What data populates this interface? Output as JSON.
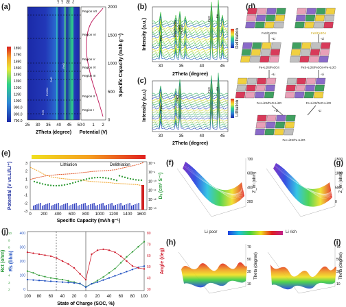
{
  "panels": {
    "a": {
      "label": "(a)",
      "colorbar_ticks": [
        "1890",
        "1790",
        "1690",
        "1590",
        "1490",
        "1390",
        "1290",
        "1190",
        "1090",
        "990.0",
        "890.0",
        "790.0"
      ],
      "xlabel": "2Theta (degree)",
      "xticks": [
        "25",
        "30",
        "35",
        "40",
        "45",
        "50"
      ],
      "peak_labels": [
        "FeS",
        "Fe3O4",
        "FeO",
        "Li2O",
        "Li2S",
        "Fe",
        "FeO",
        "FeS",
        "Li2O",
        "FeO"
      ],
      "regions": [
        "Region VII",
        "Region VI",
        "Region V",
        "Region IV",
        "Region III",
        "Region II",
        "Region I"
      ],
      "potential_label": "Potential (V)",
      "potential_ticks": [
        "0",
        "1",
        "2"
      ],
      "capacity_label": "Specific Capacity (mAh g⁻¹)",
      "capacity_ticks": [
        "0",
        "500",
        "1000",
        "1500",
        "2000"
      ]
    },
    "b": {
      "label": "(b)",
      "ylabel": "Intensity (a.u.)",
      "xlabel": "2Theta (degree)",
      "xticks": [
        "30",
        "35",
        "40",
        "45"
      ],
      "peaks": [
        "FeS",
        "Li2O/Fe3O4",
        "Li2O",
        "Fe3O4",
        "FeO",
        "Fe"
      ],
      "colorbar_label": "Delithiation"
    },
    "c": {
      "label": "(c)",
      "ylabel": "Intensity (a.u.)",
      "xlabel": "2Theta (degree)",
      "xticks": [
        "30",
        "35",
        "40",
        "45"
      ],
      "peaks": [
        "FeS",
        "FeO",
        "FeO",
        "Fe"
      ],
      "colorbar_label": "Lithiation"
    },
    "d": {
      "label": "(d)",
      "states": [
        "FeS/Fe3O4",
        "FeS/Fe3O4",
        "Fe+Li2S/Fe3O4",
        "FeS+Li2S/Fe3O4+Fe+Li2O",
        "Fe+Li2S/FeO+Li2O",
        "Fe+Li2S/FeO+Li2O",
        "Fe+Li2S/Fe+Li2O"
      ],
      "step_labels": [
        "+Li",
        "-Li",
        "+Li",
        "-Li",
        "+Li",
        "-Li"
      ]
    },
    "e": {
      "label": "(e)",
      "lithiation": "Lithiation",
      "delithiation": "Delithiation",
      "ylabel_left": "Potential (V vs.Li/Li⁺)",
      "ylabel_right": "Dₗᵢ (cm² S⁻¹)",
      "xlabel": "Specific Capacity (mAh g⁻¹)",
      "xticks": [
        "0",
        "200",
        "400",
        "600",
        "800",
        "1000",
        "1200",
        "1400",
        "1600"
      ],
      "yticks_left": [
        "3",
        "2",
        "1",
        "0",
        "-1",
        "-2",
        "-3"
      ],
      "yticks_right": [
        "10⁻⁸",
        "10⁻⁹",
        "10⁻¹⁰",
        "10⁻¹¹",
        "10⁻¹²",
        "10⁻¹³"
      ]
    },
    "f": {
      "label": "(f)",
      "zlabel": "Z_im (ohm)",
      "zticks": [
        "730",
        "600",
        "400",
        "200"
      ],
      "legend_poor": "Li poor",
      "legend_rich": "Li rich"
    },
    "g": {
      "label": "(g)",
      "zlabel": "Z_im (ohm)",
      "zticks": [
        "1500",
        "1000",
        "500",
        "0"
      ]
    },
    "h": {
      "label": "(h)",
      "zlabel": "Theta (degree)",
      "zticks": [
        "70",
        "50",
        "30",
        "10"
      ]
    },
    "i": {
      "label": "(i)",
      "zlabel": "Theta (degree)",
      "zticks": [
        "70",
        "50",
        "30",
        "10"
      ]
    },
    "j": {
      "label": "(j)",
      "ylabel_rct": "Rct (ohm)",
      "ylabel_rs": "Rs (ohm)",
      "ylabel_angle": "Angle (deg)",
      "xlabel": "State of Charge (SOC, %)",
      "xticks": [
        "100",
        "80",
        "60",
        "40",
        "20",
        "0",
        "20",
        "40",
        "60",
        "80",
        "100"
      ],
      "yticks_rct": [
        "10",
        "9",
        "8",
        "7",
        "6",
        "5",
        "4",
        "3",
        "2"
      ],
      "yticks_rs": [
        "400",
        "300",
        "200",
        "100",
        "0"
      ],
      "yticks_angle": [
        "80",
        "70",
        "60",
        "50",
        "40",
        "30"
      ]
    }
  },
  "chart_data": [
    {
      "type": "line",
      "title": "",
      "xlabel": "Specific Capacity (mAh g⁻¹)",
      "ylabel": "Potential (V vs.Li/Li⁺)",
      "xlim": [
        0,
        1650
      ],
      "ylim": [
        -3,
        3
      ],
      "series": [
        {
          "name": "Lithiation",
          "x": [
            0,
            100,
            200,
            300,
            400,
            500,
            600,
            700,
            800,
            900,
            1000,
            1100,
            1200,
            1300,
            1400,
            1500,
            1600
          ],
          "y": [
            2.3,
            1.9,
            1.4,
            1.1,
            0.95,
            0.85,
            0.8,
            0.75,
            0.6,
            0.5,
            0.45,
            0.4,
            0.3,
            0.25,
            0.2,
            0.15,
            0.0
          ]
        },
        {
          "name": "Delithiation",
          "x": [
            1600,
            1500,
            1400,
            1300,
            1200,
            1100,
            1000,
            900,
            800,
            700,
            600,
            500,
            400,
            300,
            200,
            100,
            0
          ],
          "y": [
            2.9,
            2.6,
            2.4,
            2.2,
            2.0,
            1.9,
            1.85,
            1.8,
            1.7,
            1.6,
            1.5,
            1.45,
            1.4,
            1.3,
            1.2,
            1.0,
            0.8
          ]
        }
      ]
    },
    {
      "type": "line",
      "title": "",
      "xlabel": "State of Charge (SOC, %)",
      "ylabel": "Rs (ohm)",
      "x": [
        100,
        90,
        80,
        70,
        60,
        50,
        40,
        30,
        20,
        10,
        0,
        10,
        20,
        30,
        40,
        50,
        60,
        70,
        80,
        90,
        100
      ],
      "series": [
        {
          "name": "Rct",
          "values": [
            230,
            210,
            180,
            165,
            150,
            140,
            130,
            115,
            100,
            80,
            45,
            80,
            120,
            160,
            210,
            260,
            330,
            400,
            460,
            520,
            580
          ]
        },
        {
          "name": "Rs",
          "values": [
            130,
            125,
            120,
            115,
            110,
            105,
            100,
            95,
            90,
            85,
            40,
            80,
            100,
            125,
            150,
            175,
            200,
            225,
            250,
            275,
            290
          ]
        },
        {
          "name": "Angle",
          "values": [
            64,
            63,
            62,
            61,
            60,
            58,
            55,
            52,
            48,
            42,
            36,
            62,
            66,
            67,
            66,
            64,
            60,
            55,
            50,
            48,
            47
          ]
        }
      ]
    }
  ]
}
